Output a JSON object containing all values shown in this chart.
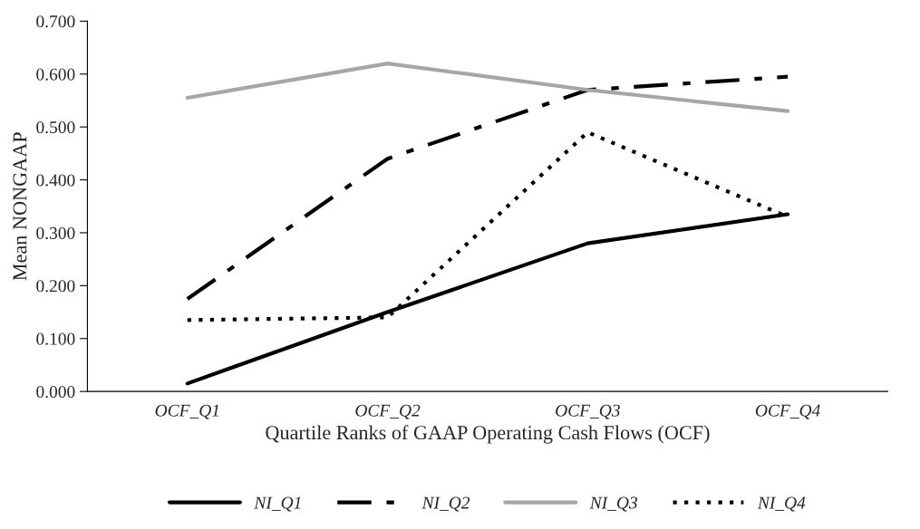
{
  "chart_data": {
    "type": "line",
    "xlabel": "Quartile Ranks of GAAP Operating Cash Flows (OCF)",
    "ylabel": "Mean NONGAAP",
    "categories": [
      "OCF_Q1",
      "OCF_Q2",
      "OCF_Q3",
      "OCF_Q4"
    ],
    "series": [
      {
        "name": "NI_Q1",
        "color": "#000000",
        "line_style": "solid",
        "values": [
          0.015,
          0.15,
          0.28,
          0.335
        ]
      },
      {
        "name": "NI_Q2",
        "color": "#000000",
        "line_style": "dashdot",
        "values": [
          0.175,
          0.44,
          0.57,
          0.595
        ]
      },
      {
        "name": "NI_Q3",
        "color": "#a6a6a6",
        "line_style": "solid",
        "values": [
          0.555,
          0.62,
          0.57,
          0.53
        ]
      },
      {
        "name": "NI_Q4",
        "color": "#000000",
        "line_style": "dotted",
        "values": [
          0.135,
          0.14,
          0.49,
          0.33
        ]
      }
    ],
    "ylim": [
      0,
      0.7
    ],
    "yticks": [
      {
        "value": 0,
        "label": "0.000"
      },
      {
        "value": 0.1,
        "label": "0.100"
      },
      {
        "value": 0.2,
        "label": "0.200"
      },
      {
        "value": 0.3,
        "label": "0.300"
      },
      {
        "value": 0.4,
        "label": "0.400"
      },
      {
        "value": 0.5,
        "label": "0.500"
      },
      {
        "value": 0.6,
        "label": "0.600"
      },
      {
        "value": 0.7,
        "label": "0.700"
      }
    ],
    "grid": false,
    "legend": "bottom",
    "marker": "none"
  }
}
